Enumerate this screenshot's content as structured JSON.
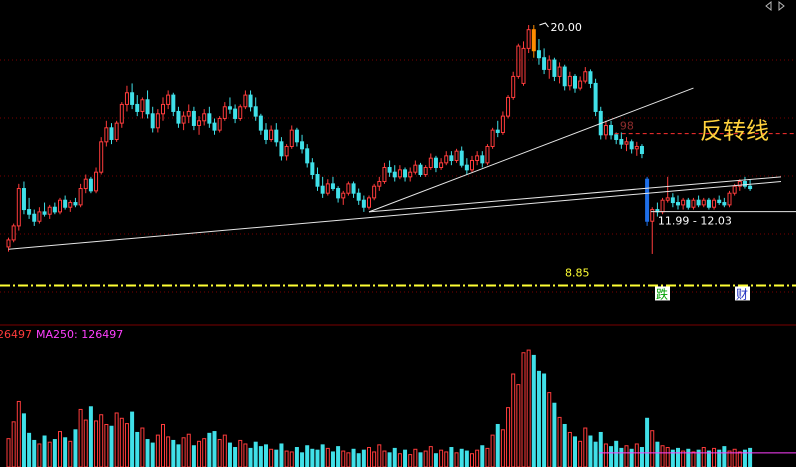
{
  "colors": {
    "background": "#000000",
    "up": "#ff3c3c",
    "down": "#40e0e8",
    "highlight_up": "#ff8c00",
    "highlight_down": "#1e6fe8",
    "grid": "#7a0000",
    "trendline": "#e6e6e6",
    "support": "#ffff33",
    "resistance_dash": "#ff3030",
    "ma250": "#ff40ff",
    "annotation": "#ffd23c",
    "tag_bg": "#ffffff"
  },
  "chart_data": {
    "type": "candlestick",
    "price_ylim": [
      7.8,
      20.9
    ],
    "peak_label": "20.00",
    "support_label": "8.85",
    "support_value": 8.85,
    "dashed_level_value": 15.35,
    "gap_label": "11.99 - 12.03",
    "gap_value": 12.01,
    "annotation_text": "反转线",
    "faded_marker": "98",
    "event_tags": [
      "跌",
      "财"
    ],
    "trendlines": [
      {
        "name": "long-support",
        "from": [
          0,
          10.4
        ],
        "to": [
          150,
          13.3
        ]
      },
      {
        "name": "short-support",
        "from": [
          70,
          12.0
        ],
        "to": [
          133,
          17.3
        ]
      },
      {
        "name": "lower-reversal",
        "from": [
          70,
          12.0
        ],
        "to": [
          150,
          13.5
        ]
      }
    ],
    "volume_label_left": "26497",
    "ma250_label": "MA250: 126497",
    "ma250_value": 1.6,
    "volume_ylim": [
      0,
      14
    ],
    "candles": [
      [
        10.5,
        10.9,
        10.3,
        10.8
      ],
      [
        10.8,
        11.5,
        10.7,
        11.4
      ],
      [
        11.4,
        13.2,
        11.2,
        13.0
      ],
      [
        13.0,
        13.3,
        11.9,
        12.1
      ],
      [
        12.1,
        12.6,
        11.7,
        11.9
      ],
      [
        11.9,
        12.1,
        11.4,
        11.6
      ],
      [
        11.6,
        12.2,
        11.5,
        12.0
      ],
      [
        12.0,
        12.4,
        11.8,
        11.9
      ],
      [
        11.9,
        12.3,
        11.7,
        12.2
      ],
      [
        12.2,
        12.4,
        11.9,
        12.0
      ],
      [
        12.0,
        12.6,
        11.9,
        12.5
      ],
      [
        12.5,
        12.7,
        12.1,
        12.2
      ],
      [
        12.2,
        12.5,
        12.0,
        12.4
      ],
      [
        12.4,
        12.6,
        12.2,
        12.3
      ],
      [
        12.3,
        13.2,
        12.2,
        13.0
      ],
      [
        13.0,
        13.6,
        12.8,
        13.4
      ],
      [
        13.4,
        13.5,
        12.8,
        12.9
      ],
      [
        12.9,
        13.9,
        12.8,
        13.7
      ],
      [
        13.7,
        15.2,
        13.6,
        15.0
      ],
      [
        15.0,
        15.9,
        14.8,
        15.6
      ],
      [
        15.6,
        15.8,
        14.9,
        15.1
      ],
      [
        15.1,
        15.9,
        15.0,
        15.8
      ],
      [
        15.8,
        16.7,
        15.6,
        16.6
      ],
      [
        16.6,
        17.4,
        16.3,
        17.1
      ],
      [
        17.1,
        17.5,
        16.4,
        16.6
      ],
      [
        16.6,
        17.0,
        16.1,
        16.3
      ],
      [
        16.3,
        16.9,
        16.0,
        16.8
      ],
      [
        16.8,
        17.2,
        16.0,
        16.2
      ],
      [
        16.2,
        16.5,
        15.4,
        15.6
      ],
      [
        15.6,
        16.4,
        15.4,
        16.2
      ],
      [
        16.2,
        16.9,
        15.9,
        16.6
      ],
      [
        16.6,
        17.2,
        16.4,
        17.0
      ],
      [
        17.0,
        17.1,
        16.1,
        16.3
      ],
      [
        16.3,
        16.5,
        15.6,
        15.8
      ],
      [
        15.8,
        16.3,
        15.5,
        16.1
      ],
      [
        16.1,
        16.6,
        15.8,
        16.3
      ],
      [
        16.3,
        16.5,
        15.5,
        15.7
      ],
      [
        15.7,
        16.1,
        15.3,
        15.9
      ],
      [
        15.9,
        16.4,
        15.7,
        16.2
      ],
      [
        16.2,
        16.5,
        15.6,
        15.8
      ],
      [
        15.8,
        16.0,
        15.3,
        15.5
      ],
      [
        15.5,
        16.1,
        15.4,
        16.0
      ],
      [
        16.0,
        16.7,
        15.9,
        16.5
      ],
      [
        16.5,
        16.9,
        16.2,
        16.4
      ],
      [
        16.4,
        16.6,
        15.8,
        16.0
      ],
      [
        16.0,
        16.6,
        15.9,
        16.5
      ],
      [
        16.5,
        17.2,
        16.4,
        17.0
      ],
      [
        17.0,
        17.2,
        16.3,
        16.5
      ],
      [
        16.5,
        16.9,
        15.9,
        16.1
      ],
      [
        16.1,
        16.2,
        15.3,
        15.5
      ],
      [
        15.5,
        15.8,
        14.9,
        15.1
      ],
      [
        15.1,
        15.7,
        15.0,
        15.5
      ],
      [
        15.5,
        15.8,
        14.8,
        15.0
      ],
      [
        15.0,
        15.2,
        14.2,
        14.4
      ],
      [
        14.4,
        14.9,
        14.2,
        14.8
      ],
      [
        14.8,
        15.7,
        14.7,
        15.5
      ],
      [
        15.5,
        15.6,
        14.8,
        15.0
      ],
      [
        15.0,
        15.3,
        14.5,
        14.7
      ],
      [
        14.7,
        14.9,
        13.9,
        14.1
      ],
      [
        14.1,
        14.3,
        13.4,
        13.6
      ],
      [
        13.6,
        13.9,
        12.9,
        13.1
      ],
      [
        13.1,
        13.5,
        12.6,
        12.8
      ],
      [
        12.8,
        13.4,
        12.7,
        13.2
      ],
      [
        13.2,
        13.5,
        12.9,
        13.0
      ],
      [
        13.0,
        13.1,
        12.4,
        12.6
      ],
      [
        12.6,
        12.9,
        12.3,
        12.8
      ],
      [
        12.8,
        13.3,
        12.7,
        13.2
      ],
      [
        13.2,
        13.3,
        12.6,
        12.8
      ],
      [
        12.8,
        13.0,
        12.3,
        12.5
      ],
      [
        12.5,
        12.7,
        12.0,
        12.2
      ],
      [
        12.2,
        12.7,
        12.1,
        12.6
      ],
      [
        12.6,
        13.2,
        12.5,
        13.1
      ],
      [
        13.1,
        13.5,
        12.9,
        13.3
      ],
      [
        13.3,
        14.1,
        13.2,
        13.9
      ],
      [
        13.9,
        14.2,
        13.5,
        13.7
      ],
      [
        13.7,
        14.0,
        13.3,
        13.5
      ],
      [
        13.5,
        14.0,
        13.4,
        13.8
      ],
      [
        13.8,
        13.9,
        13.3,
        13.5
      ],
      [
        13.5,
        13.9,
        13.3,
        13.7
      ],
      [
        13.7,
        14.2,
        13.6,
        14.0
      ],
      [
        14.0,
        14.1,
        13.5,
        13.6
      ],
      [
        13.6,
        14.0,
        13.5,
        13.9
      ],
      [
        13.9,
        14.5,
        13.8,
        14.3
      ],
      [
        14.3,
        14.4,
        13.7,
        13.9
      ],
      [
        13.9,
        14.3,
        13.8,
        14.1
      ],
      [
        14.1,
        14.6,
        14.0,
        14.4
      ],
      [
        14.4,
        14.6,
        14.0,
        14.2
      ],
      [
        14.2,
        14.7,
        14.1,
        14.6
      ],
      [
        14.6,
        14.8,
        13.9,
        14.0
      ],
      [
        14.0,
        14.3,
        13.6,
        13.8
      ],
      [
        13.8,
        14.4,
        13.7,
        14.2
      ],
      [
        14.2,
        14.6,
        14.0,
        14.4
      ],
      [
        14.4,
        14.6,
        13.9,
        14.1
      ],
      [
        14.1,
        14.9,
        14.0,
        14.8
      ],
      [
        14.8,
        15.6,
        14.7,
        15.5
      ],
      [
        15.5,
        15.9,
        15.2,
        15.4
      ],
      [
        15.4,
        16.3,
        15.3,
        16.1
      ],
      [
        16.1,
        17.0,
        16.0,
        16.9
      ],
      [
        16.9,
        18.0,
        16.8,
        17.8
      ],
      [
        17.8,
        19.2,
        17.7,
        19.1
      ],
      [
        17.5,
        19.3,
        17.4,
        19.0
      ],
      [
        19.0,
        20.0,
        18.8,
        19.8
      ],
      [
        19.8,
        20.0,
        18.6,
        18.9
      ],
      [
        18.9,
        19.4,
        18.3,
        18.6
      ],
      [
        18.6,
        19.0,
        17.9,
        18.1
      ],
      [
        18.1,
        18.7,
        17.7,
        18.5
      ],
      [
        18.5,
        18.6,
        17.6,
        17.8
      ],
      [
        17.8,
        18.4,
        17.5,
        18.2
      ],
      [
        18.2,
        18.3,
        17.2,
        17.4
      ],
      [
        17.4,
        18.0,
        17.2,
        17.8
      ],
      [
        17.8,
        17.9,
        17.1,
        17.3
      ],
      [
        17.3,
        17.8,
        17.2,
        17.6
      ],
      [
        17.6,
        18.2,
        17.5,
        18.0
      ],
      [
        18.0,
        18.1,
        17.3,
        17.5
      ],
      [
        17.5,
        17.7,
        16.1,
        16.3
      ],
      [
        16.3,
        16.5,
        15.1,
        15.3
      ],
      [
        15.3,
        15.9,
        15.1,
        15.7
      ],
      [
        15.7,
        15.9,
        15.1,
        15.3
      ],
      [
        15.3,
        15.4,
        14.9,
        15.1
      ],
      [
        15.1,
        15.4,
        14.7,
        14.9
      ],
      [
        14.9,
        15.2,
        14.6,
        15.0
      ],
      [
        15.0,
        15.1,
        14.5,
        14.7
      ],
      [
        14.7,
        15.0,
        14.4,
        14.8
      ],
      [
        14.8,
        14.9,
        14.3,
        14.5
      ],
      [
        13.4,
        13.5,
        11.4,
        11.6
      ],
      [
        11.6,
        12.2,
        10.2,
        12.1
      ],
      [
        12.1,
        12.4,
        11.8,
        12.0
      ],
      [
        12.0,
        12.6,
        11.9,
        12.5
      ],
      [
        12.5,
        13.5,
        12.4,
        12.6
      ],
      [
        12.6,
        12.8,
        12.2,
        12.4
      ],
      [
        12.4,
        12.7,
        12.1,
        12.3
      ],
      [
        12.3,
        12.6,
        12.1,
        12.5
      ],
      [
        12.5,
        12.6,
        12.1,
        12.2
      ],
      [
        12.2,
        12.6,
        12.1,
        12.5
      ],
      [
        12.5,
        12.7,
        12.2,
        12.3
      ],
      [
        12.3,
        12.6,
        12.2,
        12.5
      ],
      [
        12.5,
        12.6,
        12.1,
        12.2
      ],
      [
        12.2,
        12.6,
        12.1,
        12.5
      ],
      [
        12.5,
        12.7,
        12.3,
        12.4
      ],
      [
        12.4,
        12.6,
        12.2,
        12.3
      ],
      [
        12.3,
        12.9,
        12.2,
        12.8
      ],
      [
        12.8,
        13.2,
        12.7,
        13.1
      ],
      [
        13.1,
        13.4,
        12.9,
        13.3
      ],
      [
        13.3,
        13.5,
        13.0,
        13.1
      ],
      [
        13.1,
        13.4,
        12.9,
        13.0
      ]
    ],
    "volumes": [
      3.2,
      5.1,
      7.4,
      6.0,
      3.8,
      3.0,
      2.6,
      3.5,
      2.8,
      3.1,
      4.0,
      3.3,
      2.9,
      4.2,
      6.5,
      5.3,
      6.8,
      5.2,
      5.9,
      4.8,
      4.6,
      6.1,
      5.5,
      4.9,
      6.2,
      3.9,
      4.4,
      3.1,
      2.7,
      3.6,
      4.8,
      3.4,
      3.0,
      2.5,
      3.3,
      3.7,
      2.4,
      2.9,
      3.2,
      3.8,
      4.0,
      3.1,
      3.6,
      2.7,
      2.2,
      3.0,
      2.6,
      2.1,
      2.8,
      2.3,
      2.5,
      2.0,
      1.9,
      2.6,
      1.8,
      1.7,
      2.2,
      1.6,
      2.4,
      2.0,
      1.9,
      2.5,
      2.1,
      1.7,
      2.3,
      1.8,
      1.6,
      2.0,
      1.5,
      1.9,
      2.2,
      1.7,
      2.5,
      1.8,
      1.6,
      2.1,
      1.5,
      1.9,
      1.4,
      2.0,
      1.6,
      1.8,
      2.3,
      1.5,
      1.9,
      1.7,
      2.2,
      1.6,
      2.0,
      1.8,
      1.5,
      1.9,
      2.4,
      2.1,
      3.6,
      4.8,
      4.2,
      6.7,
      10.5,
      9.3,
      12.9,
      13.2,
      12.6,
      10.8,
      10.5,
      8.4,
      7.2,
      5.6,
      4.8,
      3.9,
      3.4,
      2.9,
      4.4,
      3.5,
      2.8,
      3.9,
      2.6,
      2.3,
      2.9,
      2.1,
      2.4,
      2.0,
      2.6,
      2.2,
      5.5,
      4.1,
      2.8,
      2.4,
      2.2,
      1.9,
      2.1,
      1.8,
      2.0,
      1.7,
      1.9,
      2.2,
      1.8,
      2.1,
      1.9,
      2.3,
      1.8,
      2.0,
      1.7,
      1.9,
      2.1
    ]
  }
}
